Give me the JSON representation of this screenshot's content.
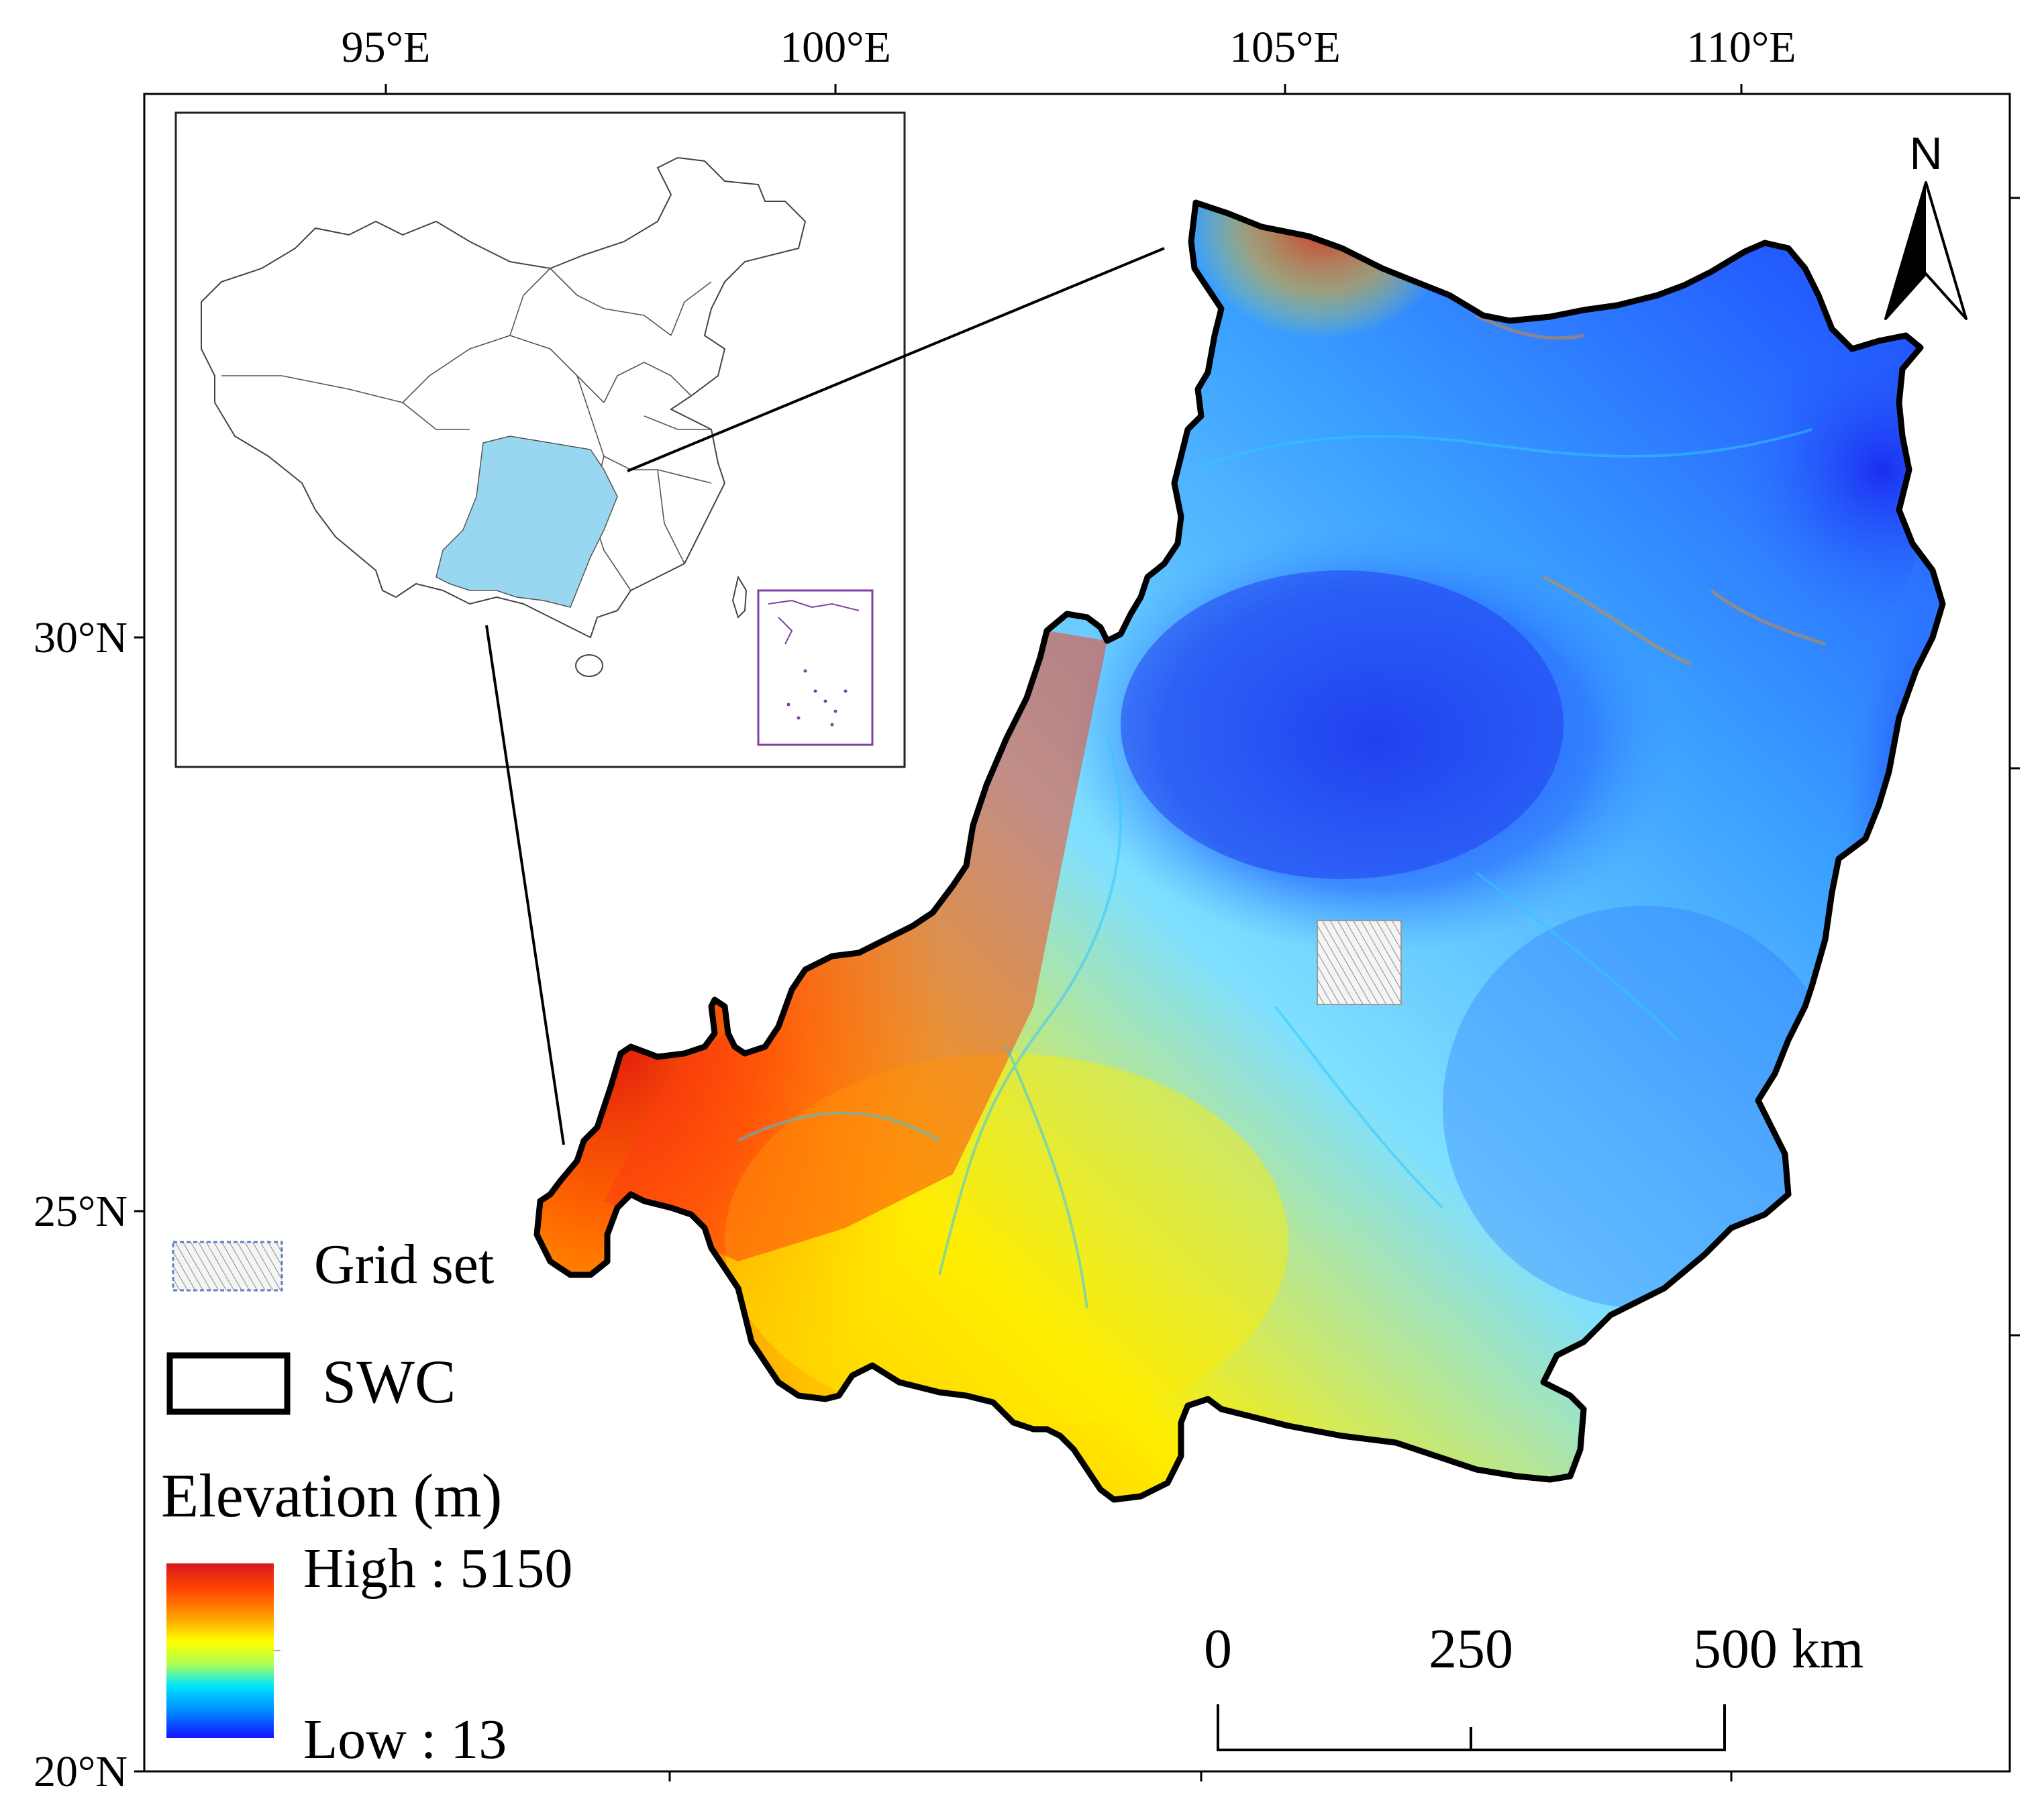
{
  "map": {
    "longitude_labels": [
      "95°E",
      "100°E",
      "105°E",
      "110°E"
    ],
    "latitude_labels": [
      "30°N",
      "25°N",
      "20°N"
    ],
    "north_arrow_label": "N"
  },
  "legend": {
    "grid_set_label": "Grid set",
    "boundary_label": "SWC",
    "elevation_title": "Elevation (m)",
    "high_label": "High : 5150",
    "low_label": "Low : 13",
    "elevation_high_value": 5150,
    "elevation_low_value": 13,
    "ramp_colors": [
      "#d7191c",
      "#ff4500",
      "#ff9900",
      "#ffff00",
      "#aaff55",
      "#00e5ff",
      "#0088ff",
      "#1414ff"
    ]
  },
  "scale_bar": {
    "ticks": [
      "0",
      "250",
      "500 km"
    ]
  },
  "inset": {
    "highlight_region_color": "#99d7f0",
    "south_china_sea_box_color": "#8040a0"
  }
}
